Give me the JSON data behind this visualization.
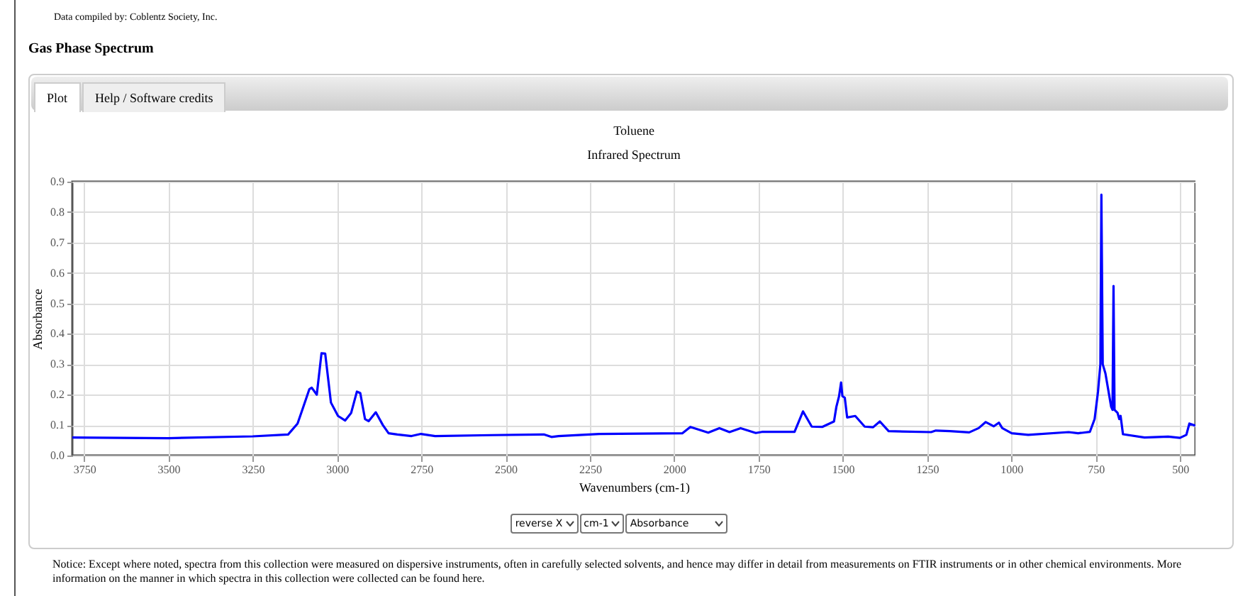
{
  "chart_data": {
    "type": "line",
    "title": "Toluene",
    "subtitle": "Infrared Spectrum",
    "xlabel": "Wavenumbers (cm-1)",
    "ylabel": "Absorbance",
    "annotations": [
      "Data compiled by: Coblentz Society, Inc.",
      "Gas Phase Spectrum",
      "Plot",
      "Help / Software credits",
      "reverse X",
      "cm-1",
      "Absorbance",
      "Notice: Except where noted, spectra from this collection were measured on dispersive instruments, often in carefully selected solvents, and hence may differ in detail from measurements on FTIR instruments or in other chemical environments. More information on the manner in which spectra in this collection were collected can be found here."
    ],
    "xlim": [
      3785,
      454
    ],
    "xticks": [
      3750,
      3500,
      3250,
      3000,
      2750,
      2500,
      2250,
      2000,
      1750,
      1500,
      1250,
      1000,
      750,
      500
    ],
    "ylim": [
      0,
      0.9
    ],
    "yticks": [
      {
        "value": 0,
        "label": "0.0"
      },
      0.1,
      0.2,
      0.3,
      0.4,
      0.5,
      0.6,
      0.7,
      0.8,
      0.9
    ],
    "grid": true,
    "marker": "none",
    "line_style": "solid",
    "series": [
      {
        "color": "#0000ff",
        "x": [
          3785,
          3500,
          3250,
          3145,
          3117,
          3103,
          3082,
          3075,
          3060,
          3046,
          3035,
          3018,
          2997,
          2976,
          2958,
          2941,
          2931,
          2917,
          2906,
          2885,
          2864,
          2847,
          2821,
          2779,
          2751,
          2709,
          2540,
          2385,
          2364,
          2343,
          2222,
          1976,
          1952,
          1899,
          1866,
          1836,
          1803,
          1758,
          1737,
          1643,
          1618,
          1592,
          1561,
          1526,
          1519,
          1511,
          1505,
          1501,
          1494,
          1487,
          1463,
          1435,
          1410,
          1390,
          1364,
          1238,
          1224,
          1182,
          1125,
          1097,
          1076,
          1052,
          1037,
          1027,
          999,
          950,
          830,
          802,
          767,
          753,
          743,
          736,
          733,
          729,
          721,
          704,
          700,
          697,
          694,
          685,
          680,
          676,
          669,
          605,
          535,
          500,
          481,
          472,
          454
        ],
        "values": [
          0.059,
          0.057,
          0.063,
          0.069,
          0.105,
          0.15,
          0.218,
          0.223,
          0.2,
          0.336,
          0.335,
          0.174,
          0.13,
          0.115,
          0.14,
          0.21,
          0.205,
          0.12,
          0.113,
          0.142,
          0.1,
          0.073,
          0.069,
          0.064,
          0.071,
          0.064,
          0.067,
          0.069,
          0.061,
          0.064,
          0.071,
          0.073,
          0.094,
          0.075,
          0.09,
          0.077,
          0.09,
          0.074,
          0.078,
          0.078,
          0.145,
          0.095,
          0.094,
          0.112,
          0.16,
          0.195,
          0.24,
          0.195,
          0.19,
          0.125,
          0.13,
          0.095,
          0.093,
          0.112,
          0.08,
          0.077,
          0.082,
          0.08,
          0.076,
          0.09,
          0.11,
          0.096,
          0.108,
          0.09,
          0.073,
          0.068,
          0.077,
          0.073,
          0.078,
          0.12,
          0.21,
          0.3,
          0.857,
          0.3,
          0.27,
          0.16,
          0.15,
          0.557,
          0.15,
          0.14,
          0.12,
          0.13,
          0.07,
          0.059,
          0.062,
          0.058,
          0.068,
          0.105,
          0.098
        ]
      }
    ]
  }
}
